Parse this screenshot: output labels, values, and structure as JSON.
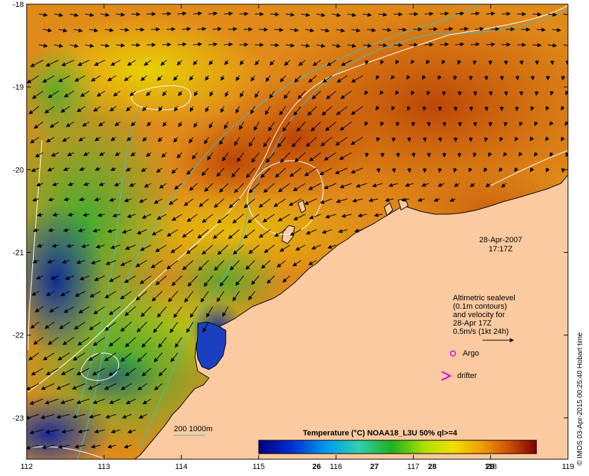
{
  "map": {
    "lon_ticks": [
      "112",
      "113",
      "114",
      "115",
      "116",
      "117",
      "118",
      "119"
    ],
    "lat_ticks": [
      "-18",
      "-19",
      "-20",
      "-21",
      "-22",
      "-23"
    ],
    "lon_range": [
      112,
      119
    ],
    "lat_range": [
      -23.5,
      -18
    ],
    "date": "28-Apr-2007",
    "time": "17:17Z",
    "legend": {
      "line1": "Altimetric sealevel",
      "line2": "(0.1m contours)",
      "line3": "and velocity for",
      "line4": "28-Apr 17Z",
      "line5": "0.5m/s (1kt 24h)",
      "argo": "Argo",
      "drifter": "drifter"
    },
    "isobath_label": "200  1000m",
    "colorbar": {
      "title": "Temperature (°C) NOAA18_L3U 50% ql>=4",
      "labels": [
        "26",
        "27",
        "28",
        "29"
      ]
    },
    "credit": "© IMOS 03-Apr-2015 00:25:40 Hobart time",
    "colors": {
      "land": "#fbcaa0",
      "isobath": "#40c0c0",
      "sealevel_contour": "#ffffff",
      "argo": "#e000e0",
      "drifter": "#e000e0"
    }
  }
}
